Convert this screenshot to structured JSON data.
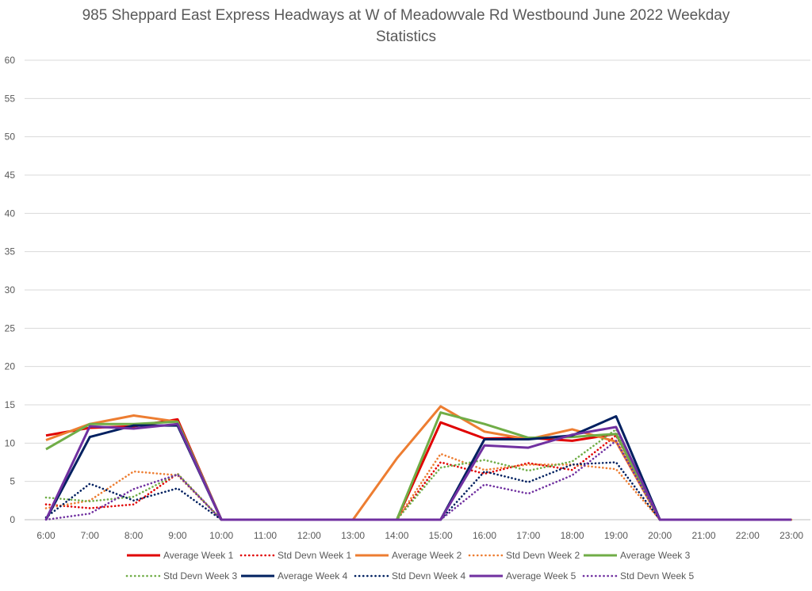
{
  "chart_data": {
    "type": "line",
    "title_line1": "985 Sheppard East Express Headways at W of Meadowvale Rd Westbound June 2022 Weekday",
    "title_line2": "Statistics",
    "xlabel": "",
    "ylabel": "",
    "ylim": [
      0,
      60
    ],
    "yticks": [
      0,
      5,
      10,
      15,
      20,
      25,
      30,
      35,
      40,
      45,
      50,
      55,
      60
    ],
    "categories": [
      "6:00",
      "7:00",
      "8:00",
      "9:00",
      "10:00",
      "11:00",
      "12:00",
      "13:00",
      "14:00",
      "15:00",
      "16:00",
      "17:00",
      "18:00",
      "19:00",
      "20:00",
      "21:00",
      "22:00",
      "23:00"
    ],
    "grid": true,
    "legend_position": "bottom",
    "series": [
      {
        "name": "Average Week 1",
        "color": "#e00000",
        "style": "solid",
        "values": [
          11.0,
          12.0,
          12.2,
          13.1,
          0,
          0,
          0,
          0,
          0,
          12.7,
          10.6,
          10.7,
          10.3,
          11.2,
          0,
          0,
          0,
          0
        ]
      },
      {
        "name": "Std Devn Week 1",
        "color": "#e00000",
        "style": "dotted",
        "values": [
          2.0,
          1.5,
          2.0,
          6.0,
          0,
          0,
          0,
          0,
          0,
          7.5,
          6.0,
          7.4,
          6.5,
          11.0,
          0,
          0,
          0,
          0
        ]
      },
      {
        "name": "Average Week 2",
        "color": "#ed7d31",
        "style": "solid",
        "values": [
          10.4,
          12.5,
          13.6,
          12.8,
          0,
          0,
          0,
          0,
          8.0,
          14.8,
          11.5,
          10.5,
          11.8,
          10.2,
          0,
          0,
          0,
          0
        ]
      },
      {
        "name": "Std Devn Week 2",
        "color": "#ed7d31",
        "style": "dotted",
        "values": [
          1.5,
          2.5,
          6.3,
          5.8,
          0,
          0,
          0,
          0,
          0,
          8.6,
          6.5,
          7.2,
          7.2,
          6.6,
          0,
          0,
          0,
          0
        ]
      },
      {
        "name": "Average Week 3",
        "color": "#70ad47",
        "style": "solid",
        "values": [
          9.2,
          12.5,
          12.5,
          12.8,
          0,
          0,
          0,
          0,
          0,
          14.0,
          12.5,
          10.7,
          10.8,
          11.2,
          0,
          0,
          0,
          0
        ]
      },
      {
        "name": "Std Devn Week 3",
        "color": "#70ad47",
        "style": "dotted",
        "values": [
          2.9,
          2.4,
          3.0,
          6.0,
          0,
          0,
          0,
          0,
          0,
          6.8,
          7.8,
          6.4,
          7.6,
          11.8,
          0,
          0,
          0,
          0
        ]
      },
      {
        "name": "Average Week 4",
        "color": "#002060",
        "style": "solid",
        "values": [
          0,
          10.8,
          12.3,
          12.3,
          0,
          0,
          0,
          0,
          0,
          0,
          10.5,
          10.5,
          11.0,
          13.5,
          0,
          0,
          0,
          0
        ]
      },
      {
        "name": "Std Devn Week 4",
        "color": "#002060",
        "style": "dotted",
        "values": [
          0.3,
          4.7,
          2.5,
          4.1,
          0,
          0,
          0,
          0,
          0,
          0,
          6.3,
          4.9,
          7.2,
          7.5,
          0,
          0,
          0,
          0
        ]
      },
      {
        "name": "Average Week 5",
        "color": "#7030a0",
        "style": "solid",
        "values": [
          0,
          12.2,
          11.9,
          12.5,
          0,
          0,
          0,
          0,
          0,
          0,
          9.7,
          9.4,
          11.1,
          12.1,
          0,
          0,
          0,
          0
        ]
      },
      {
        "name": "Std Devn Week 5",
        "color": "#7030a0",
        "style": "dotted",
        "values": [
          0,
          0.8,
          4.0,
          5.9,
          0,
          0,
          0,
          0,
          0,
          0,
          4.6,
          3.4,
          5.8,
          10.3,
          0,
          0,
          0,
          0
        ]
      }
    ]
  },
  "colors": {
    "grid": "#d9d9d9",
    "axis_text": "#595959",
    "title_text": "#595959"
  }
}
